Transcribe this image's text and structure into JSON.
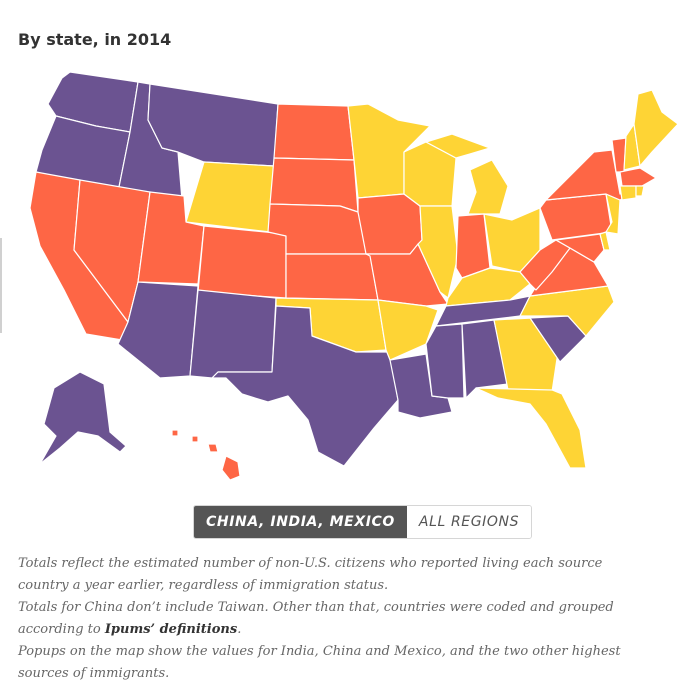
{
  "subtitle": "By state, in 2014",
  "colors": {
    "purple": "#6b5391",
    "orange": "#fe6645",
    "yellow": "#fed435"
  },
  "toggle": {
    "active_label": "CHINA, INDIA, MEXICO",
    "inactive_label": "ALL REGIONS"
  },
  "notes": {
    "line1": "Totals reflect the estimated number of non-U.S. citizens who reported living each source country a year earlier, regardless of immigration status.",
    "line2_pre": "Totals for China don’t include Taiwan. Other than that, countries were coded and grouped according to ",
    "line2_link": "Ipums’ definitions",
    "line2_post": ".",
    "line3": "Popups on the map show the values for India, China and Mexico, and the two other highest sources of immigrants."
  }
}
